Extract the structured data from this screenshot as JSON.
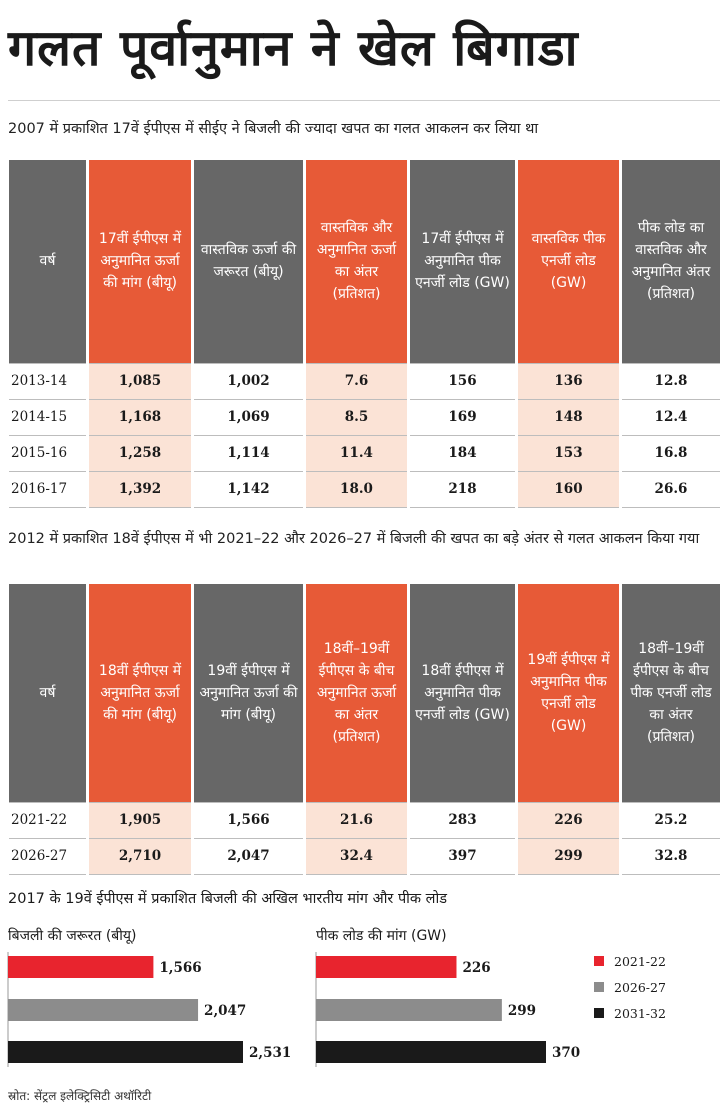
{
  "headline": "गलत पूर्वानुमान ने खेल बिगाडा",
  "colors": {
    "orange": "#e75a37",
    "grey": "#676767",
    "tint": "#fbe3d6",
    "red": "#e8242e",
    "midgrey": "#8c8c8c",
    "black": "#1a1a1a"
  },
  "table1": {
    "subhead": "2007 में प्रकाशित 17वें ईपीएस में सीईए ने बिजली की ज्यादा खपत का गलत आकलन कर लिया था",
    "headers": [
      "वर्ष",
      "17वीं ईपीएस में अनुमानित ऊर्जा की मांग (बीयू)",
      "वास्तविक ऊर्जा की जरूरत (बीयू)",
      "वास्तविक और अनुमानित ऊर्जा का अंतर (प्रतिशत)",
      "17वीं ईपीएस में अनुमानित पीक एनर्जी लोड (GW)",
      "वास्तविक पीक एनर्जी लोड (GW)",
      "पीक लोड का वास्तविक और अनुमानित अंतर (प्रतिशत)"
    ],
    "rows": [
      [
        "2013-14",
        "1,085",
        "1,002",
        "7.6",
        "156",
        "136",
        "12.8"
      ],
      [
        "2014-15",
        "1,168",
        "1,069",
        "8.5",
        "169",
        "148",
        "12.4"
      ],
      [
        "2015-16",
        "1,258",
        "1,114",
        "11.4",
        "184",
        "153",
        "16.8"
      ],
      [
        "2016-17",
        "1,392",
        "1,142",
        "18.0",
        "218",
        "160",
        "26.6"
      ]
    ]
  },
  "table2": {
    "subhead": "2012 में प्रकाशित 18वें ईपीएस में भी 2021–22 और 2026–27 में बिजली की खपत का बड़े अंतर से गलत आकलन किया गया",
    "headers": [
      "वर्ष",
      "18वीं ईपीएस में अनुमानित ऊर्जा की मांग (बीयू)",
      "19वीं ईपीएस में अनुमानित ऊर्जा की मांग (बीयू)",
      "18वीं–19वीं ईपीएस के बीच अनुमानित ऊर्जा का अंतर (प्रतिशत)",
      "18वीं ईपीएस में अनुमानित पीक एनर्जी लोड (GW)",
      "19वीं ईपीएस में अनुमानित पीक एनर्जी लोड (GW)",
      "18वीं–19वीं ईपीएस के बीच पीक एनर्जी लोड का अंतर (प्रतिशत)"
    ],
    "rows": [
      [
        "2021-22",
        "1,905",
        "1,566",
        "21.6",
        "283",
        "226",
        "25.2"
      ],
      [
        "2026-27",
        "2,710",
        "2,047",
        "32.4",
        "397",
        "299",
        "32.8"
      ]
    ]
  },
  "chart_title": "2017 के 19वें ईपीएस में प्रकाशित बिजली की अखिल भारतीय मांग और पीक लोड",
  "chart_data": [
    {
      "type": "bar",
      "title": "बिजली की जरूरत (बीयू)",
      "categories": [
        "2021-22",
        "2026-27",
        "2031-32"
      ],
      "values": [
        1566,
        2047,
        2531
      ],
      "value_labels": [
        "1,566",
        "2,047",
        "2,531"
      ],
      "colors": [
        "#e8242e",
        "#8c8c8c",
        "#1a1a1a"
      ],
      "orientation": "horizontal"
    },
    {
      "type": "bar",
      "title": "पीक लोड की मांग (GW)",
      "categories": [
        "2021-22",
        "2026-27",
        "2031-32"
      ],
      "values": [
        226,
        299,
        370
      ],
      "value_labels": [
        "226",
        "299",
        "370"
      ],
      "colors": [
        "#e8242e",
        "#8c8c8c",
        "#1a1a1a"
      ],
      "orientation": "horizontal"
    }
  ],
  "legend": [
    {
      "label": "2021-22",
      "color": "#e8242e"
    },
    {
      "label": "2026-27",
      "color": "#8c8c8c"
    },
    {
      "label": "2031-32",
      "color": "#1a1a1a"
    }
  ],
  "source": "स्रोत: सेंट्रल इलेक्ट्रिसिटी अथॉरिटी"
}
